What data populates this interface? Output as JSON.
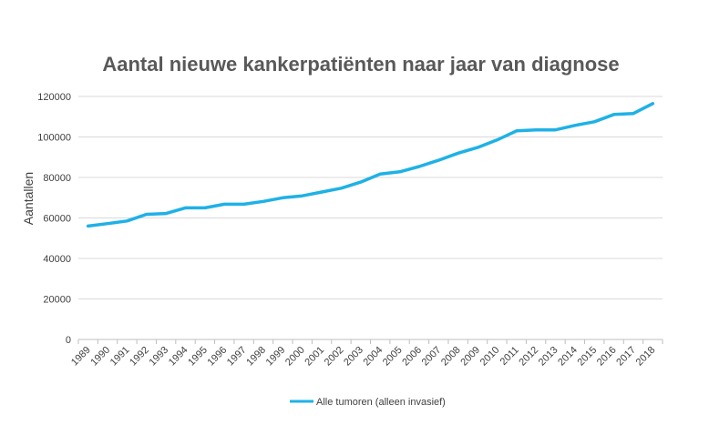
{
  "chart_data": {
    "type": "line",
    "title": "Aantal nieuwe kankerpatiënten naar jaar van diagnose",
    "ylabel": "Aantallen",
    "xlabel": "",
    "ylim": [
      0,
      120000
    ],
    "yticks": [
      "0",
      "20000",
      "40000",
      "60000",
      "80000",
      "100000",
      "120000"
    ],
    "grid": true,
    "legend_position": "bottom",
    "categories": [
      "1989",
      "1990",
      "1991",
      "1992",
      "1993",
      "1994",
      "1995",
      "1996",
      "1997",
      "1998",
      "1999",
      "2000",
      "2001",
      "2002",
      "2003",
      "2004",
      "2005",
      "2006",
      "2007",
      "2008",
      "2009",
      "2010",
      "2011",
      "2012",
      "2013",
      "2014",
      "2015",
      "2016",
      "2017",
      "2018"
    ],
    "series": [
      {
        "name": "Alle tumoren (alleen invasief)",
        "color": "#1FB1E6",
        "values": [
          56000,
          57200,
          58500,
          61800,
          62200,
          65000,
          65000,
          66800,
          66800,
          68200,
          70000,
          70900,
          72800,
          74700,
          77700,
          81700,
          82800,
          85400,
          88500,
          92000,
          94800,
          98500,
          103000,
          103500,
          103500,
          105700,
          107500,
          111100,
          111600,
          116500
        ]
      }
    ]
  }
}
